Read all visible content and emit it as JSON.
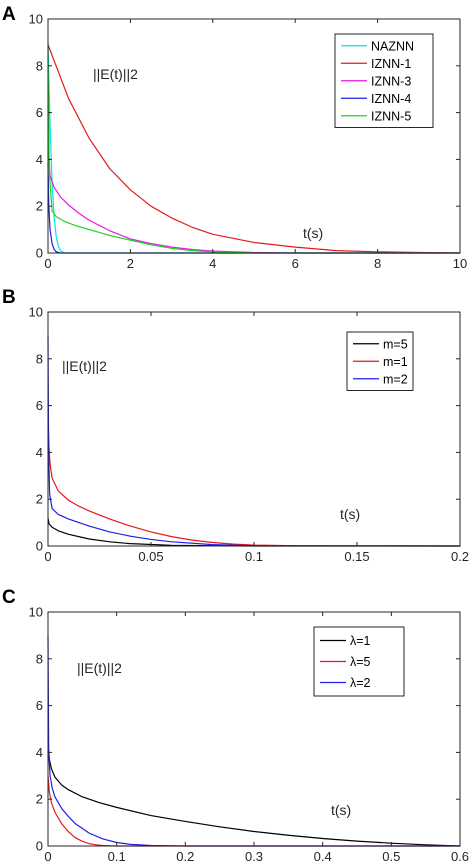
{
  "chart_data": [
    {
      "panel": "A",
      "type": "line",
      "title": "",
      "xlabel": "",
      "ylabel": "",
      "annotations": [
        "||E(t)||2",
        "t(s)"
      ],
      "xlim": [
        0,
        10
      ],
      "ylim": [
        0,
        10
      ],
      "xticks": [
        0,
        2,
        4,
        6,
        8,
        10
      ],
      "yticks": [
        0,
        2,
        4,
        6,
        8,
        10
      ],
      "legend_position": "top-right",
      "grid": false,
      "series": [
        {
          "name": "NAZNN",
          "color": "#00e5e5",
          "x": [
            0,
            0.02,
            0.05,
            0.1,
            0.15,
            0.2,
            0.25,
            0.3,
            0.4,
            10
          ],
          "y": [
            9.0,
            7.5,
            5.5,
            3.0,
            1.5,
            0.7,
            0.3,
            0.1,
            0.0,
            0.0
          ]
        },
        {
          "name": "IZNN-1",
          "color": "#e31a1c",
          "x": [
            0,
            0.5,
            1,
            1.5,
            2,
            2.5,
            3,
            3.5,
            4,
            5,
            6,
            7,
            8,
            9,
            10
          ],
          "y": [
            8.9,
            6.6,
            4.9,
            3.6,
            2.7,
            2.0,
            1.5,
            1.1,
            0.8,
            0.45,
            0.25,
            0.1,
            0.05,
            0.02,
            0.0
          ]
        },
        {
          "name": "IZNN-3",
          "color": "#e619e6",
          "x": [
            0,
            0.05,
            0.15,
            0.3,
            0.5,
            0.75,
            1,
            1.5,
            2,
            2.5,
            3,
            3.5,
            4,
            5,
            6,
            10
          ],
          "y": [
            4.8,
            3.3,
            2.8,
            2.4,
            2.05,
            1.7,
            1.4,
            0.95,
            0.6,
            0.4,
            0.25,
            0.15,
            0.08,
            0.02,
            0.0,
            0.0
          ]
        },
        {
          "name": "IZNN-4",
          "color": "#1f1fe6",
          "x": [
            0,
            0.02,
            0.05,
            0.1,
            0.15,
            0.2,
            0.3,
            10
          ],
          "y": [
            3.8,
            2.0,
            1.0,
            0.4,
            0.15,
            0.05,
            0.0,
            0.0
          ]
        },
        {
          "name": "IZNN-5",
          "color": "#19d919",
          "x": [
            0,
            0.03,
            0.1,
            0.2,
            0.4,
            0.7,
            1,
            1.5,
            2,
            2.5,
            3,
            3.5,
            4,
            5,
            10
          ],
          "y": [
            8.5,
            3.5,
            1.8,
            1.55,
            1.35,
            1.15,
            1.0,
            0.75,
            0.55,
            0.35,
            0.2,
            0.1,
            0.05,
            0.0,
            0.0
          ]
        }
      ]
    },
    {
      "panel": "B",
      "type": "line",
      "title": "",
      "xlabel": "",
      "ylabel": "",
      "annotations": [
        "||E(t)||2",
        "t(s)"
      ],
      "xlim": [
        0,
        0.2
      ],
      "ylim": [
        0,
        10
      ],
      "xticks": [
        0,
        0.05,
        0.1,
        0.15,
        0.2
      ],
      "yticks": [
        0,
        2,
        4,
        6,
        8,
        10
      ],
      "legend_position": "top-right",
      "grid": false,
      "series": [
        {
          "name": "m=5",
          "color": "#000000",
          "x": [
            0,
            0.0005,
            0.002,
            0.005,
            0.01,
            0.02,
            0.03,
            0.04,
            0.06,
            0.08,
            0.1,
            0.2
          ],
          "y": [
            1.2,
            0.95,
            0.8,
            0.65,
            0.5,
            0.3,
            0.18,
            0.1,
            0.03,
            0.01,
            0.0,
            0.0
          ]
        },
        {
          "name": "m=1",
          "color": "#e31a1c",
          "x": [
            0,
            0.0005,
            0.001,
            0.002,
            0.005,
            0.01,
            0.015,
            0.02,
            0.03,
            0.04,
            0.05,
            0.06,
            0.07,
            0.08,
            0.09,
            0.1,
            0.12,
            0.2
          ],
          "y": [
            5.5,
            4.2,
            3.5,
            2.9,
            2.35,
            1.95,
            1.7,
            1.5,
            1.15,
            0.85,
            0.6,
            0.4,
            0.25,
            0.15,
            0.08,
            0.04,
            0.01,
            0.0
          ]
        },
        {
          "name": "m=2",
          "color": "#1f1fe6",
          "x": [
            0,
            0.0003,
            0.0008,
            0.002,
            0.005,
            0.01,
            0.02,
            0.03,
            0.04,
            0.05,
            0.06,
            0.08,
            0.1,
            0.2
          ],
          "y": [
            9.0,
            4.0,
            2.2,
            1.6,
            1.35,
            1.15,
            0.85,
            0.6,
            0.42,
            0.28,
            0.18,
            0.06,
            0.01,
            0.0
          ]
        }
      ]
    },
    {
      "panel": "C",
      "type": "line",
      "title": "",
      "xlabel": "",
      "ylabel": "",
      "annotations": [
        "||E(t)||2",
        "t(s)"
      ],
      "xlim": [
        0,
        0.6
      ],
      "ylim": [
        0,
        10
      ],
      "xticks": [
        0,
        0.1,
        0.2,
        0.3,
        0.4,
        0.5,
        0.6
      ],
      "yticks": [
        0,
        2,
        4,
        6,
        8,
        10
      ],
      "legend_position": "top-right",
      "grid": false,
      "series": [
        {
          "name": "λ=1",
          "color": "#000000",
          "x": [
            0,
            0.002,
            0.005,
            0.01,
            0.02,
            0.03,
            0.05,
            0.075,
            0.1,
            0.15,
            0.2,
            0.25,
            0.3,
            0.35,
            0.4,
            0.45,
            0.5,
            0.55,
            0.6
          ],
          "y": [
            4.5,
            3.7,
            3.3,
            2.95,
            2.6,
            2.4,
            2.1,
            1.85,
            1.65,
            1.3,
            1.05,
            0.82,
            0.62,
            0.46,
            0.32,
            0.21,
            0.12,
            0.05,
            0.0
          ]
        },
        {
          "name": "λ=5",
          "color": "#e31a1c",
          "x": [
            0,
            0.002,
            0.005,
            0.01,
            0.02,
            0.03,
            0.04,
            0.05,
            0.06,
            0.07,
            0.08,
            0.1,
            0.6
          ],
          "y": [
            3.0,
            2.3,
            1.85,
            1.45,
            0.95,
            0.6,
            0.35,
            0.2,
            0.1,
            0.05,
            0.02,
            0.0,
            0.0
          ]
        },
        {
          "name": "λ=2",
          "color": "#1f1fe6",
          "x": [
            0,
            0.001,
            0.003,
            0.006,
            0.01,
            0.02,
            0.03,
            0.04,
            0.06,
            0.08,
            0.1,
            0.12,
            0.15,
            0.2,
            0.6
          ],
          "y": [
            9.0,
            4.0,
            3.0,
            2.5,
            2.1,
            1.6,
            1.25,
            0.95,
            0.55,
            0.3,
            0.15,
            0.07,
            0.02,
            0.0,
            0.0
          ]
        }
      ]
    }
  ]
}
